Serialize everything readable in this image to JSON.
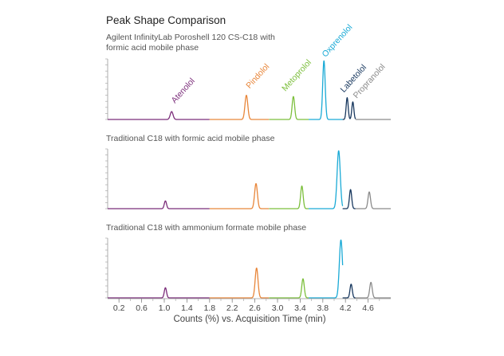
{
  "chart_data": {
    "type": "line",
    "title": "Peak Shape Comparison",
    "xlabel": "Counts (%) vs. Acquisition Time (min)",
    "xlim": [
      0.0,
      5.0
    ],
    "xticks": [
      "0.2",
      "0.6",
      "1.0",
      "1.4",
      "1.8",
      "2.2",
      "2.6",
      "3.0",
      "3.4",
      "3.8",
      "4.2",
      "4.6"
    ],
    "ylim": [
      0,
      100
    ],
    "series_colors": {
      "Atenolol": "#7b2d7a",
      "Pindolol": "#e8863a",
      "Metoprolol": "#7cbf3c",
      "Oxprenolol": "#1aaad6",
      "Labetolol": "#17375e",
      "Propranolol": "#8a8a8a"
    },
    "segments": [
      {
        "compound": "Atenolol",
        "x": [
          0.0,
          1.8
        ]
      },
      {
        "compound": "Pindolol",
        "x": [
          1.8,
          2.85
        ]
      },
      {
        "compound": "Metoprolol",
        "x": [
          2.85,
          3.55
        ]
      },
      {
        "compound": "Oxprenolol",
        "x": [
          3.55,
          4.15
        ]
      },
      {
        "compound": "Labetolol",
        "x": [
          4.15,
          4.38
        ]
      },
      {
        "compound": "Propranolol",
        "x": [
          4.38,
          5.0
        ]
      }
    ],
    "panels": [
      {
        "subtitle": "Agilent InfinityLab Poroshell 120 CS-C18 with formic acid mobile phase",
        "subtitle_lines": [
          "Agilent InfinityLab Poroshell 120 CS-C18 with",
          "formic acid mobile phase"
        ],
        "peaks": [
          {
            "name": "Atenolol",
            "label": "Atenolol",
            "x": 1.13,
            "y": 13,
            "width": 0.025
          },
          {
            "name": "Pindolol",
            "label": "Pindolol",
            "x": 2.45,
            "y": 40,
            "width": 0.025
          },
          {
            "name": "Metoprolol",
            "label": "Metoprolol",
            "x": 3.28,
            "y": 38,
            "width": 0.022
          },
          {
            "name": "Oxprenolol",
            "label": "Oxprenolol",
            "x": 3.82,
            "y": 97,
            "width": 0.022
          },
          {
            "name": "Labetolol",
            "label": "Labetolol",
            "x": 4.23,
            "y": 36,
            "width": 0.018
          },
          {
            "name": "Propranolol",
            "label": "Propranolol",
            "x": 4.33,
            "y": 29,
            "width": 0.018
          }
        ]
      },
      {
        "subtitle": "Traditional C18 with formic acid mobile phase",
        "subtitle_lines": [
          "Traditional C18 with formic acid mobile phase"
        ],
        "peaks": [
          {
            "name": "Atenolol",
            "x": 1.02,
            "y": 13,
            "width": 0.02
          },
          {
            "name": "Pindolol",
            "x": 2.62,
            "y": 42,
            "width": 0.025
          },
          {
            "name": "Metoprolol",
            "x": 3.43,
            "y": 38,
            "width": 0.022
          },
          {
            "name": "Oxprenolol",
            "x": 4.08,
            "y": 97,
            "width": 0.028
          },
          {
            "name": "Labetolol",
            "x": 4.29,
            "y": 32,
            "width": 0.02
          },
          {
            "name": "Propranolol",
            "x": 4.62,
            "y": 28,
            "width": 0.022
          }
        ]
      },
      {
        "subtitle": "Traditional C18 with ammonium formate mobile phase",
        "subtitle_lines": [
          "Traditional C18 with ammonium formate mobile phase"
        ],
        "peaks": [
          {
            "name": "Atenolol",
            "x": 1.02,
            "y": 17,
            "width": 0.02
          },
          {
            "name": "Pindolol",
            "x": 2.63,
            "y": 50,
            "width": 0.025
          },
          {
            "name": "Metoprolol",
            "x": 3.45,
            "y": 32,
            "width": 0.022
          },
          {
            "name": "Oxprenolol",
            "x": 4.12,
            "y": 97,
            "width": 0.028
          },
          {
            "name": "Labetolol",
            "x": 4.3,
            "y": 23,
            "width": 0.02
          },
          {
            "name": "Propranolol",
            "x": 4.65,
            "y": 26,
            "width": 0.022
          }
        ]
      }
    ]
  }
}
